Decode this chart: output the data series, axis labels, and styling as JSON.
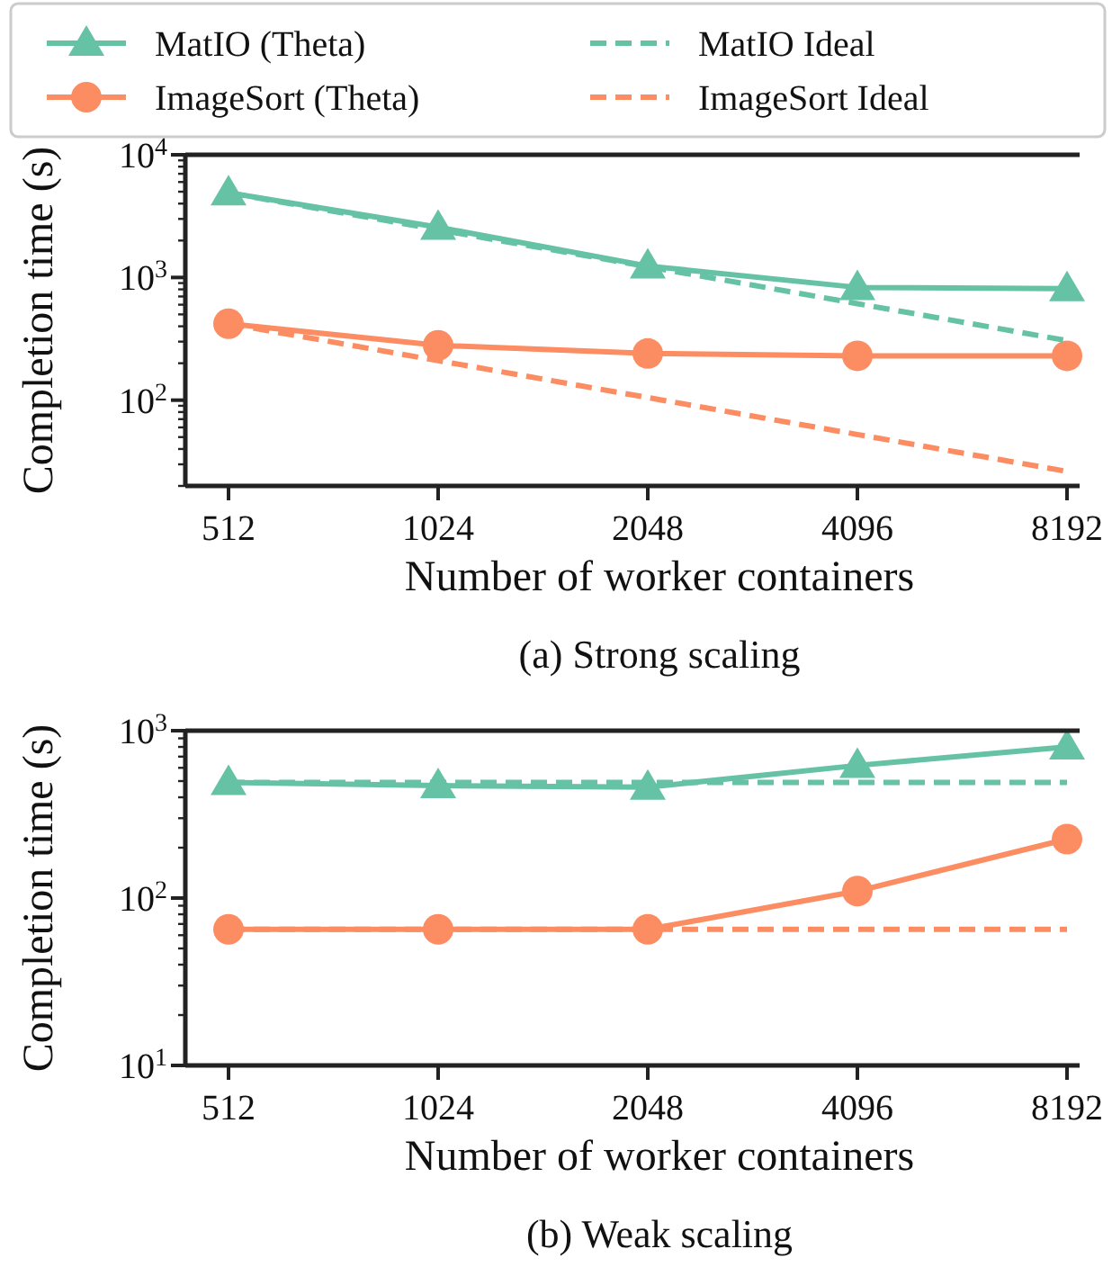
{
  "chart_data": [
    {
      "type": "line",
      "title": "(a) Strong scaling",
      "xlabel": "Number of worker containers",
      "ylabel": "Completion time (s)",
      "categories": [
        "512",
        "1024",
        "2048",
        "4096",
        "8192"
      ],
      "log": "y",
      "ylim": [
        20,
        10000
      ],
      "yticks": [
        {
          "value": 20,
          "label": null
        },
        {
          "value": 30,
          "label": null
        },
        {
          "value": 40,
          "label": null
        },
        {
          "value": 50,
          "label": null
        },
        {
          "value": 60,
          "label": null
        },
        {
          "value": 70,
          "label": null
        },
        {
          "value": 80,
          "label": null
        },
        {
          "value": 90,
          "label": null
        },
        {
          "value": 100,
          "label": "10$^{2}$"
        },
        {
          "value": 200,
          "label": null
        },
        {
          "value": 300,
          "label": null
        },
        {
          "value": 400,
          "label": null
        },
        {
          "value": 500,
          "label": null
        },
        {
          "value": 600,
          "label": null
        },
        {
          "value": 700,
          "label": null
        },
        {
          "value": 800,
          "label": null
        },
        {
          "value": 900,
          "label": null
        },
        {
          "value": 1000,
          "label": "10$^{3}$"
        },
        {
          "value": 2000,
          "label": null
        },
        {
          "value": 3000,
          "label": null
        },
        {
          "value": 4000,
          "label": null
        },
        {
          "value": 5000,
          "label": null
        },
        {
          "value": 6000,
          "label": null
        },
        {
          "value": 7000,
          "label": null
        },
        {
          "value": 8000,
          "label": null
        },
        {
          "value": 9000,
          "label": null
        },
        {
          "value": 10000,
          "label": "10$^{4}$"
        }
      ],
      "legend": "top",
      "grid": false,
      "series": [
        {
          "name": "MatIO (Theta)",
          "color": "#66c2a5",
          "marker": "triangle",
          "line_style": "solid",
          "values": [
            4900,
            2570,
            1240,
            830,
            810
          ]
        },
        {
          "name": "ImageSort (Theta)",
          "color": "#fc8d62",
          "marker": "circle",
          "line_style": "solid",
          "values": [
            420,
            280,
            240,
            230,
            230
          ]
        },
        {
          "name": "MatIO Ideal",
          "color": "#66c2a5",
          "marker": "none",
          "line_style": "dashed",
          "values": [
            4900,
            2450,
            1225,
            612,
            306
          ]
        },
        {
          "name": "ImageSort Ideal",
          "color": "#fc8d62",
          "marker": "none",
          "line_style": "dashed",
          "values": [
            420,
            210,
            105,
            52.5,
            26.25
          ]
        }
      ]
    },
    {
      "type": "line",
      "title": "(b) Weak scaling",
      "xlabel": "Number of worker containers",
      "ylabel": "Completion time (s)",
      "categories": [
        "512",
        "1024",
        "2048",
        "4096",
        "8192"
      ],
      "log": "y",
      "ylim": [
        10,
        1000
      ],
      "yticks": [
        {
          "value": 10,
          "label": "10$^{1}$"
        },
        {
          "value": 20,
          "label": null
        },
        {
          "value": 30,
          "label": null
        },
        {
          "value": 40,
          "label": null
        },
        {
          "value": 50,
          "label": null
        },
        {
          "value": 60,
          "label": null
        },
        {
          "value": 70,
          "label": null
        },
        {
          "value": 80,
          "label": null
        },
        {
          "value": 90,
          "label": null
        },
        {
          "value": 100,
          "label": "10$^{2}$"
        },
        {
          "value": 200,
          "label": null
        },
        {
          "value": 300,
          "label": null
        },
        {
          "value": 400,
          "label": null
        },
        {
          "value": 500,
          "label": null
        },
        {
          "value": 600,
          "label": null
        },
        {
          "value": 700,
          "label": null
        },
        {
          "value": 800,
          "label": null
        },
        {
          "value": 900,
          "label": null
        },
        {
          "value": 1000,
          "label": "10$^{3}$"
        }
      ],
      "legend": false,
      "grid": false,
      "series": [
        {
          "color": "#66c2a5",
          "marker": "triangle",
          "line_style": "solid",
          "values": [
            490,
            470,
            460,
            620,
            800
          ]
        },
        {
          "color": "#fc8d62",
          "marker": "circle",
          "line_style": "solid",
          "values": [
            65,
            65,
            65,
            110,
            225
          ]
        },
        {
          "color": "#66c2a5",
          "marker": "none",
          "line_style": "dashed",
          "values": [
            490,
            490,
            490,
            490,
            490
          ]
        },
        {
          "color": "#fc8d62",
          "marker": "none",
          "line_style": "dashed",
          "values": [
            65,
            65,
            65,
            65,
            65
          ]
        }
      ]
    }
  ]
}
